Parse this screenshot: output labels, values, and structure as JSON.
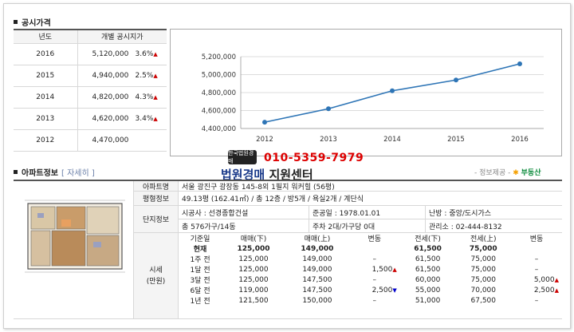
{
  "section1": {
    "title": "공시가격"
  },
  "price_table": {
    "headers": [
      "년도",
      "개별 공시지가"
    ],
    "rows": [
      {
        "year": "2016",
        "price": "5,120,000",
        "change": "3.6%",
        "dir": "up"
      },
      {
        "year": "2015",
        "price": "4,940,000",
        "change": "2.5%",
        "dir": "up"
      },
      {
        "year": "2014",
        "price": "4,820,000",
        "change": "4.3%",
        "dir": "up"
      },
      {
        "year": "2013",
        "price": "4,620,000",
        "change": "3.4%",
        "dir": "up"
      },
      {
        "year": "2012",
        "price": "4,470,000",
        "change": "",
        "dir": ""
      }
    ]
  },
  "chart_data": {
    "type": "line",
    "x": [
      "2012",
      "2013",
      "2014",
      "2015",
      "2016"
    ],
    "series": [
      {
        "values": [
          4470000,
          4620000,
          4820000,
          4940000,
          5120000
        ]
      }
    ],
    "ylim": [
      4400000,
      5200000
    ],
    "yticks": [
      "4,400,000",
      "4,600,000",
      "4,800,000",
      "5,000,000",
      "5,200,000"
    ],
    "grid": true,
    "line_color": "#2e75b6"
  },
  "overlay": {
    "phone": "010-5359-7979",
    "brand_main": "법원경매",
    "brand_sub": "지원센터",
    "stamp": "한국법원경매",
    "provider_prefix": "- 정보제공 -",
    "provider_name": "부동산"
  },
  "section2": {
    "title": "아파트정보",
    "detail": "[ 자세히 ]"
  },
  "apt": {
    "name_label": "아파트명",
    "name": "서울 광진구 광장동 145-8외 1필지 워커힐 (56평)",
    "area_label": "평형정보",
    "area": "49.13평 (162.41㎡) / 총 12층 / 방5개 / 욕실2개 / 계단식",
    "complex_label": "단지정보",
    "builder": "시공사 : 선경종합건설",
    "completion": "준공일 : 1978.01.01",
    "heating": "난방 : 중앙/도시가스",
    "households": "총 576가구/14동",
    "parking": "주차 2대/가구당 0대",
    "office": "관리소 : 02-444-8132",
    "market_label": "시세\n(만원)"
  },
  "market": {
    "headers": [
      "기준일",
      "매매(下)",
      "매매(上)",
      "변동",
      "전세(下)",
      "전세(上)",
      "변동"
    ],
    "rows": [
      {
        "date": "현재",
        "s_low": "125,000",
        "s_high": "149,000",
        "s_chg": "",
        "s_dir": "",
        "j_low": "61,500",
        "j_high": "75,000",
        "j_chg": "",
        "j_dir": ""
      },
      {
        "date": "1주 전",
        "s_low": "125,000",
        "s_high": "149,000",
        "s_chg": "–",
        "s_dir": "",
        "j_low": "61,500",
        "j_high": "75,000",
        "j_chg": "–",
        "j_dir": ""
      },
      {
        "date": "1달 전",
        "s_low": "125,000",
        "s_high": "149,000",
        "s_chg": "1,500",
        "s_dir": "up",
        "j_low": "61,500",
        "j_high": "75,000",
        "j_chg": "–",
        "j_dir": ""
      },
      {
        "date": "3달 전",
        "s_low": "125,000",
        "s_high": "147,500",
        "s_chg": "–",
        "s_dir": "",
        "j_low": "60,000",
        "j_high": "75,000",
        "j_chg": "5,000",
        "j_dir": "up"
      },
      {
        "date": "6달 전",
        "s_low": "119,000",
        "s_high": "147,500",
        "s_chg": "2,500",
        "s_dir": "down",
        "j_low": "55,000",
        "j_high": "70,000",
        "j_chg": "2,500",
        "j_dir": "up"
      },
      {
        "date": "1년 전",
        "s_low": "121,500",
        "s_high": "150,000",
        "s_chg": "–",
        "s_dir": "",
        "j_low": "51,000",
        "j_high": "67,500",
        "j_chg": "–",
        "j_dir": ""
      }
    ]
  }
}
